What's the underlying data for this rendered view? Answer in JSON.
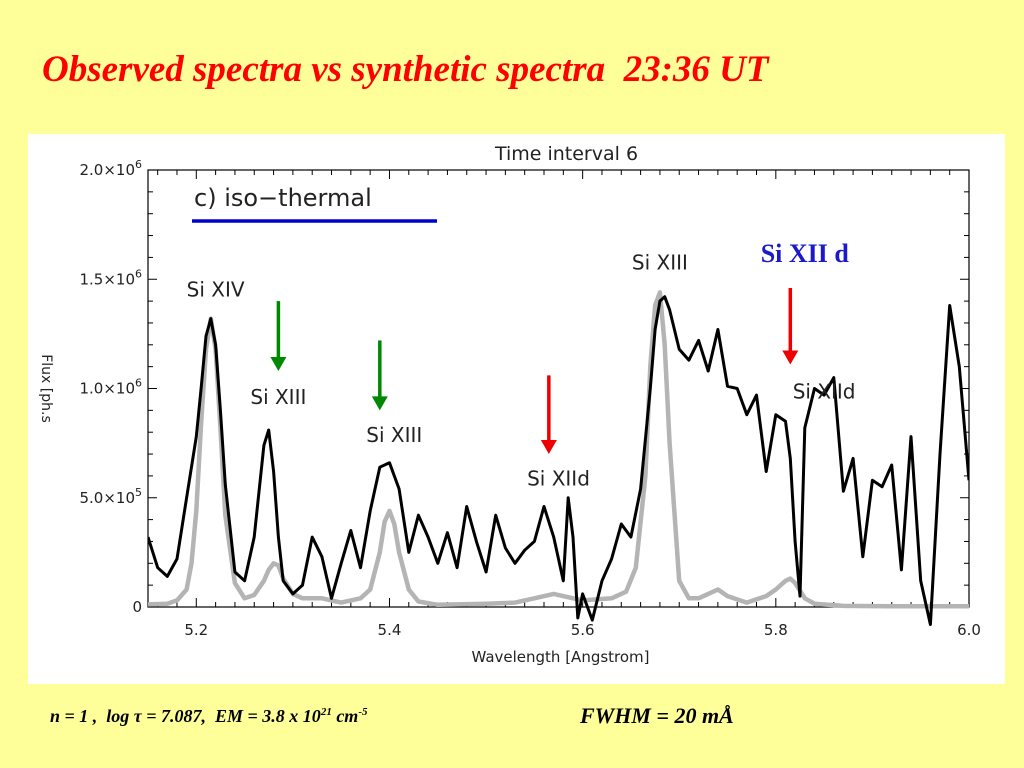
{
  "slide": {
    "title": "Observed spectra vs synthetic spectra  23:36 UT"
  },
  "footer": {
    "n_label": "n = 1 ,  log ",
    "tau_symbol": "τ",
    "tau_value": " = 7.087,  EM = 3.8 x 10",
    "em_exponent": "21",
    "em_unit": " cm",
    "em_unit_exponent": "-5",
    "fwhm": "FWHM = 20 mÅ"
  },
  "colors": {
    "background": "#ffff99",
    "title": "#ff0000",
    "observed": "#000000",
    "synthetic": "#b4b4b4",
    "iso_underline": "#0000cc",
    "green_arrow": "#008800",
    "red_arrow": "#ee0000",
    "si12d_label": "#1a1acc"
  },
  "chart_data": {
    "type": "line",
    "title": "Time interval 6",
    "panel_label": "c) iso−thermal",
    "xlabel": "Wavelength  [Angstrom]",
    "ylabel": "Flux  [ph.s",
    "xlim": [
      5.15,
      6.0
    ],
    "ylim": [
      0,
      2000000.0
    ],
    "x_ticks": [
      "5.2",
      "5.4",
      "5.6",
      "5.8",
      "6.0"
    ],
    "x_tick_values": [
      5.2,
      5.4,
      5.6,
      5.8,
      6.0
    ],
    "y_ticks": [
      {
        "value": 0,
        "mantissa": "0",
        "exp": ""
      },
      {
        "value": 500000,
        "mantissa": "5.0×10",
        "exp": "5"
      },
      {
        "value": 1000000,
        "mantissa": "1.0×10",
        "exp": "6"
      },
      {
        "value": 1500000,
        "mantissa": "1.5×10",
        "exp": "6"
      },
      {
        "value": 2000000,
        "mantissa": "2.0×10",
        "exp": "6"
      }
    ],
    "grid": false,
    "series": [
      {
        "x": [
          5.15,
          5.16,
          5.17,
          5.18,
          5.19,
          5.2,
          5.205,
          5.21,
          5.215,
          5.22,
          5.225,
          5.23,
          5.24,
          5.25,
          5.26,
          5.27,
          5.275,
          5.28,
          5.285,
          5.29,
          5.3,
          5.31,
          5.32,
          5.33,
          5.34,
          5.35,
          5.36,
          5.37,
          5.38,
          5.39,
          5.4,
          5.41,
          5.42,
          5.43,
          5.44,
          5.45,
          5.46,
          5.47,
          5.48,
          5.49,
          5.5,
          5.51,
          5.52,
          5.53,
          5.54,
          5.55,
          5.56,
          5.57,
          5.58,
          5.585,
          5.59,
          5.595,
          5.6,
          5.61,
          5.62,
          5.63,
          5.64,
          5.65,
          5.66,
          5.67,
          5.675,
          5.68,
          5.685,
          5.69,
          5.7,
          5.71,
          5.72,
          5.73,
          5.74,
          5.75,
          5.76,
          5.77,
          5.78,
          5.79,
          5.8,
          5.81,
          5.815,
          5.82,
          5.825,
          5.83,
          5.84,
          5.85,
          5.86,
          5.87,
          5.88,
          5.89,
          5.9,
          5.91,
          5.92,
          5.93,
          5.94,
          5.95,
          5.96,
          5.97,
          5.98,
          5.99,
          6.0
        ],
        "y": [
          320000,
          180000,
          140000,
          220000,
          500000,
          780000,
          1000000,
          1240000,
          1320000,
          1200000,
          900000,
          560000,
          160000,
          120000,
          320000,
          740000,
          810000,
          620000,
          320000,
          120000,
          60000,
          100000,
          320000,
          230000,
          40000,
          200000,
          350000,
          180000,
          440000,
          640000,
          660000,
          540000,
          250000,
          420000,
          320000,
          200000,
          340000,
          180000,
          460000,
          300000,
          160000,
          420000,
          270000,
          200000,
          260000,
          300000,
          460000,
          320000,
          120000,
          500000,
          320000,
          -50000,
          60000,
          -60000,
          120000,
          220000,
          380000,
          320000,
          540000,
          1000000,
          1270000,
          1400000,
          1420000,
          1360000,
          1180000,
          1130000,
          1220000,
          1080000,
          1270000,
          1010000,
          1000000,
          880000,
          970000,
          620000,
          880000,
          850000,
          680000,
          300000,
          50000,
          820000,
          1000000,
          970000,
          1050000,
          530000,
          680000,
          230000,
          580000,
          550000,
          650000,
          170000,
          780000,
          120000,
          -80000,
          700000,
          1380000,
          1100000,
          580000
        ],
        "name": ""
      },
      {
        "x": [
          5.15,
          5.17,
          5.18,
          5.19,
          5.195,
          5.2,
          5.205,
          5.21,
          5.215,
          5.22,
          5.225,
          5.23,
          5.24,
          5.25,
          5.26,
          5.27,
          5.275,
          5.28,
          5.285,
          5.29,
          5.3,
          5.31,
          5.33,
          5.35,
          5.37,
          5.38,
          5.39,
          5.395,
          5.4,
          5.405,
          5.41,
          5.42,
          5.43,
          5.45,
          5.5,
          5.53,
          5.55,
          5.57,
          5.6,
          5.63,
          5.645,
          5.655,
          5.665,
          5.67,
          5.675,
          5.68,
          5.685,
          5.69,
          5.7,
          5.71,
          5.72,
          5.73,
          5.74,
          5.75,
          5.77,
          5.79,
          5.8,
          5.81,
          5.815,
          5.82,
          5.83,
          5.84,
          5.87,
          5.92,
          6.0
        ],
        "y": [
          12000,
          15000,
          30000,
          80000,
          200000,
          440000,
          840000,
          1180000,
          1320000,
          1180000,
          820000,
          420000,
          110000,
          40000,
          55000,
          120000,
          170000,
          200000,
          190000,
          130000,
          60000,
          40000,
          40000,
          20000,
          40000,
          80000,
          250000,
          390000,
          440000,
          380000,
          250000,
          80000,
          25000,
          10000,
          15000,
          20000,
          40000,
          60000,
          30000,
          40000,
          70000,
          180000,
          600000,
          1100000,
          1380000,
          1440000,
          1200000,
          750000,
          120000,
          40000,
          40000,
          60000,
          80000,
          50000,
          20000,
          50000,
          80000,
          120000,
          130000,
          110000,
          40000,
          15000,
          5000,
          3000,
          3000
        ],
        "name": ""
      }
    ],
    "annotations": [
      {
        "text": "Si  XIV",
        "x": 5.22,
        "y": 1420000
      },
      {
        "text": "Si  XIII",
        "x": 5.285,
        "y": 930000
      },
      {
        "text": "Si  XIII",
        "x": 5.405,
        "y": 755000
      },
      {
        "text": "Si  XIId",
        "x": 5.575,
        "y": 555000
      },
      {
        "text": "Si  XIII",
        "x": 5.68,
        "y": 1545000
      },
      {
        "text": "Si  XIId",
        "x": 5.85,
        "y": 955000
      }
    ],
    "external_labels": [
      {
        "text": "Si XII d"
      }
    ]
  }
}
